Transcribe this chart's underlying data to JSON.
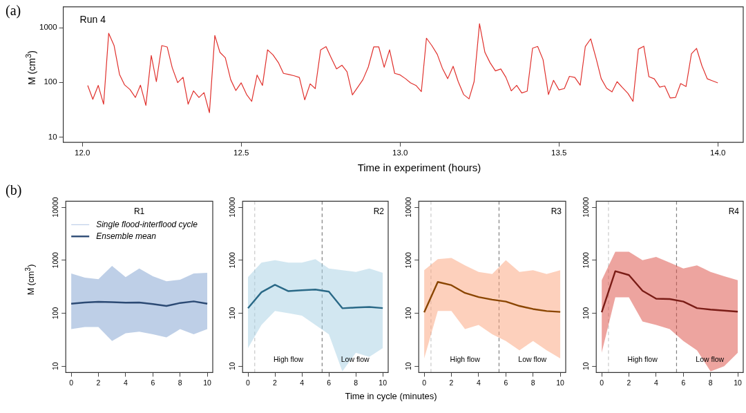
{
  "chart_data": [
    {
      "type": "line",
      "title": "Run 4",
      "xlabel": "Time in experiment (hours)",
      "ylabel": "M (cm$^{3}$)",
      "annotations": [
        "(a)"
      ],
      "x": [
        12.017,
        12.033,
        12.05,
        12.067,
        12.083,
        12.1,
        12.117,
        12.133,
        12.15,
        12.167,
        12.183,
        12.2,
        12.217,
        12.233,
        12.25,
        12.267,
        12.283,
        12.3,
        12.317,
        12.333,
        12.35,
        12.367,
        12.383,
        12.4,
        12.417,
        12.433,
        12.45,
        12.467,
        12.483,
        12.5,
        12.517,
        12.533,
        12.55,
        12.567,
        12.583,
        12.6,
        12.617,
        12.633,
        12.65,
        12.667,
        12.683,
        12.7,
        12.717,
        12.733,
        12.75,
        12.767,
        12.783,
        12.8,
        12.817,
        12.833,
        12.85,
        12.867,
        12.883,
        12.9,
        12.917,
        12.933,
        12.95,
        12.967,
        12.983,
        13.0,
        13.017,
        13.033,
        13.05,
        13.067,
        13.083,
        13.1,
        13.117,
        13.133,
        13.15,
        13.167,
        13.183,
        13.2,
        13.217,
        13.233,
        13.25,
        13.267,
        13.283,
        13.3,
        13.317,
        13.333,
        13.35,
        13.367,
        13.383,
        13.4,
        13.417,
        13.433,
        13.45,
        13.467,
        13.483,
        13.5,
        13.517,
        13.533,
        13.55,
        13.567,
        13.583,
        13.6,
        13.617,
        13.633,
        13.65,
        13.667,
        13.683,
        13.7,
        13.717,
        13.733,
        13.75,
        13.767,
        13.783,
        13.8,
        13.817,
        13.833,
        13.85,
        13.867,
        13.883,
        13.9,
        13.917,
        13.933,
        13.95,
        13.967,
        13.983,
        14.0
      ],
      "series": [
        {
          "color": "#e0302c",
          "values": [
            88,
            49,
            88,
            40,
            790,
            470,
            140,
            90,
            74,
            53,
            89,
            38,
            310,
            103,
            470,
            444,
            185,
            99,
            124,
            40,
            70,
            53,
            65,
            28,
            720,
            354,
            282,
            112,
            71,
            98,
            60,
            45,
            136,
            88,
            393,
            319,
            230,
            146,
            139,
            132,
            123,
            48,
            94,
            77,
            393,
            449,
            282,
            176,
            206,
            156,
            59,
            82,
            112,
            191,
            444,
            444,
            189,
            393,
            146,
            137,
            117,
            98,
            88,
            68,
            643,
            470,
            326,
            182,
            117,
            197,
            103,
            60,
            50,
            103,
            1180,
            354,
            230,
            162,
            176,
            124,
            70,
            88,
            64,
            69,
            422,
            453,
            260,
            60,
            109,
            73,
            77,
            129,
            123,
            89,
            453,
            624,
            274,
            117,
            78,
            67,
            103,
            80,
            63,
            45,
            405,
            458,
            127,
            116,
            82,
            86,
            52,
            53,
            95,
            84,
            333,
            418,
            201,
            116,
            107,
            98
          ]
        }
      ],
      "xlim": [
        11.94,
        14.08
      ],
      "xticks": [
        {
          "value": 12,
          "label": "12.0"
        },
        12.5,
        {
          "value": 13,
          "label": "13.0"
        },
        13.5,
        {
          "value": 14,
          "label": "14.0"
        }
      ],
      "ylim": [
        8,
        2400
      ],
      "yticks": [
        10,
        100,
        1000
      ],
      "log": "y"
    },
    {
      "type": "line",
      "title": "R1",
      "ylabel": "M (cm$^{3}$)",
      "annotations": [
        "(b)"
      ],
      "x": [
        0,
        1,
        2,
        3,
        4,
        5,
        6,
        7,
        8,
        9,
        10
      ],
      "series": [
        {
          "name": "Single flood-interflood cycle",
          "color": "#7d9fd0",
          "values": [
            null,
            null,
            null,
            null,
            null,
            null,
            null,
            null,
            null,
            null,
            null
          ],
          "lower": [
            50,
            55,
            55,
            30,
            42,
            45,
            40,
            35,
            50,
            40,
            50
          ],
          "upper": [
            560,
            470,
            440,
            780,
            480,
            700,
            500,
            400,
            430,
            560,
            580
          ]
        },
        {
          "name": "Ensemble mean",
          "color": "#2c4a74",
          "values": [
            151,
            159,
            164,
            162,
            158,
            159,
            149,
            137,
            156,
            167,
            151
          ]
        }
      ],
      "xlim": [
        -0.4,
        10.4
      ],
      "xticks": [
        0,
        2,
        4,
        6,
        8,
        10
      ],
      "ylim": [
        7.6,
        13000
      ],
      "yticks": [
        10,
        100,
        1000,
        10000
      ],
      "log": "y",
      "legend": "top left"
    },
    {
      "type": "line",
      "title": "R2",
      "xlabel": "Time in cycle (minutes)",
      "annotations": [
        "High flow",
        "Low flow"
      ],
      "x": [
        0,
        1,
        2,
        3,
        4,
        5,
        6,
        7,
        8,
        9,
        10
      ],
      "series": [
        {
          "color": "#a6d0e4",
          "values": [
            null,
            null,
            null,
            null,
            null,
            null,
            null,
            null,
            null,
            null,
            null
          ],
          "lower": [
            22,
            60,
            110,
            100,
            90,
            60,
            40,
            8,
            18,
            15,
            22
          ],
          "upper": [
            480,
            900,
            1000,
            900,
            900,
            1050,
            700,
            650,
            600,
            700,
            580
          ]
        },
        {
          "color": "#2a6987",
          "values": [
            124,
            249,
            344,
            261,
            271,
            280,
            256,
            124,
            128,
            131,
            125
          ]
        }
      ],
      "ref_lines": [
        {
          "axis": "x",
          "value": 0.5,
          "color": "#c8c8c8",
          "line_style": "dashed"
        },
        {
          "axis": "x",
          "value": 5.5,
          "color": "#808080",
          "line_style": "dashed"
        }
      ],
      "xlim": [
        -0.4,
        10.4
      ],
      "xticks": [
        0,
        2,
        4,
        6,
        8,
        10
      ],
      "ylim": [
        7.6,
        13000
      ],
      "yticks": [
        10,
        100,
        1000,
        10000
      ],
      "log": "y"
    },
    {
      "type": "line",
      "title": "R3",
      "annotations": [
        "High flow",
        "Low flow"
      ],
      "x": [
        0,
        1,
        2,
        3,
        4,
        5,
        6,
        7,
        8,
        9,
        10
      ],
      "series": [
        {
          "color": "#fca27a",
          "values": [
            null,
            null,
            null,
            null,
            null,
            null,
            null,
            null,
            null,
            null,
            null
          ],
          "lower": [
            14,
            110,
            110,
            50,
            60,
            40,
            30,
            20,
            30,
            20,
            14
          ],
          "upper": [
            650,
            1050,
            1100,
            800,
            600,
            550,
            1000,
            600,
            650,
            550,
            650
          ]
        },
        {
          "color": "#8a4500",
          "values": [
            104,
            389,
            338,
            241,
            202,
            180,
            166,
            137,
            120,
            110,
            106
          ]
        }
      ],
      "ref_lines": [
        {
          "axis": "x",
          "value": 0.5,
          "color": "#c8c8c8",
          "line_style": "dashed"
        },
        {
          "axis": "x",
          "value": 5.5,
          "color": "#808080",
          "line_style": "dashed"
        }
      ],
      "xlim": [
        -0.4,
        10.4
      ],
      "xticks": [
        0,
        2,
        4,
        6,
        8,
        10
      ],
      "ylim": [
        7.6,
        13000
      ],
      "yticks": [
        10,
        100,
        1000,
        10000
      ],
      "log": "y"
    },
    {
      "type": "line",
      "title": "R4",
      "annotations": [
        "High flow",
        "Low flow"
      ],
      "x": [
        0,
        1,
        2,
        3,
        4,
        5,
        6,
        7,
        8,
        9,
        10
      ],
      "series": [
        {
          "color": "#dc4a40",
          "values": [
            null,
            null,
            null,
            null,
            null,
            null,
            null,
            null,
            null,
            null,
            null
          ],
          "lower": [
            18,
            200,
            200,
            70,
            60,
            50,
            30,
            20,
            8,
            10,
            18
          ],
          "upper": [
            420,
            1450,
            1450,
            1000,
            1150,
            900,
            700,
            800,
            600,
            500,
            420
          ]
        },
        {
          "color": "#7a1c16",
          "values": [
            104,
            620,
            525,
            265,
            188,
            185,
            166,
            125,
            117,
            112,
            107
          ]
        }
      ],
      "ref_lines": [
        {
          "axis": "x",
          "value": 0.5,
          "color": "#c8c8c8",
          "line_style": "dashed"
        },
        {
          "axis": "x",
          "value": 5.5,
          "color": "#808080",
          "line_style": "dashed"
        }
      ],
      "xlim": [
        -0.4,
        10.4
      ],
      "xticks": [
        0,
        2,
        4,
        6,
        8,
        10
      ],
      "ylim": [
        7.6,
        13000
      ],
      "yticks": [
        10,
        100,
        1000,
        10000
      ],
      "log": "y"
    }
  ]
}
